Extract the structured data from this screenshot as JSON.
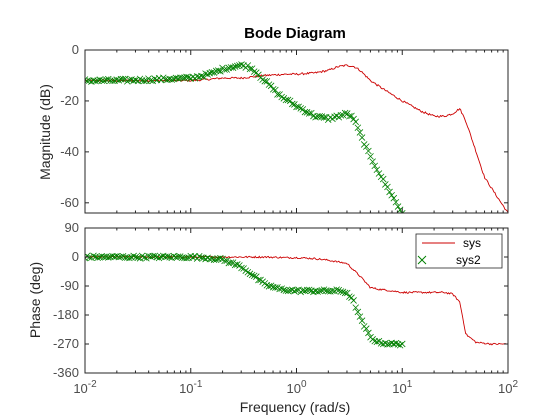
{
  "title": "Bode Diagram",
  "xlabel": "Frequency  (rad/s)",
  "colors": {
    "sys": "#cc0000",
    "sys2": "#008000",
    "axis": "#262626",
    "tick": "#4d4d4d"
  },
  "legend": {
    "placement": "top-right (phase plot)",
    "entries": [
      "sys",
      "sys2"
    ]
  },
  "chart_data": [
    {
      "type": "line",
      "ylabel": "Magnitude (dB)",
      "xscale": "log",
      "xlim": [
        0.01,
        100
      ],
      "ylim": [
        -64,
        0
      ],
      "yticks": [
        0,
        -20,
        -40,
        -60
      ],
      "ytick_labels": [
        "0",
        "-20",
        "-40",
        "-60"
      ],
      "grid": false,
      "series": [
        {
          "name": "sys",
          "style": "line",
          "x": [
            0.01,
            0.02,
            0.05,
            0.1,
            0.15,
            0.2,
            0.3,
            0.5,
            0.8,
            1.0,
            1.5,
            2.0,
            2.5,
            3.0,
            3.5,
            4.0,
            5.0,
            7.0,
            10,
            15,
            20,
            25,
            30,
            35,
            40,
            50,
            60,
            80,
            100
          ],
          "y": [
            -12,
            -12,
            -12,
            -12,
            -11.5,
            -11,
            -11,
            -10,
            -9.5,
            -9.5,
            -9,
            -8,
            -6.5,
            -6,
            -6.5,
            -8,
            -12,
            -16,
            -20,
            -24,
            -26,
            -26,
            -25,
            -23,
            -28,
            -40,
            -50,
            -58,
            -64
          ]
        },
        {
          "name": "sys2",
          "style": "x-markers",
          "x": [
            0.01,
            0.02,
            0.05,
            0.1,
            0.15,
            0.2,
            0.25,
            0.3,
            0.35,
            0.4,
            0.5,
            0.7,
            1.0,
            1.5,
            2.0,
            2.5,
            3.0,
            3.5,
            4.0,
            5.0,
            6.0,
            7.0,
            8.0,
            9.0,
            10.0
          ],
          "y": [
            -12,
            -12,
            -11.5,
            -11,
            -9.5,
            -7.5,
            -6.5,
            -6,
            -6.5,
            -8,
            -12,
            -18,
            -22,
            -26,
            -27,
            -26,
            -25,
            -27,
            -33,
            -42,
            -48,
            -53,
            -57,
            -61,
            -64
          ]
        }
      ]
    },
    {
      "type": "line",
      "ylabel": "Phase (deg)",
      "xscale": "log",
      "xlim": [
        0.01,
        100
      ],
      "ylim": [
        -360,
        90
      ],
      "yticks": [
        90,
        0,
        -90,
        -180,
        -270,
        -360
      ],
      "ytick_labels": [
        "90",
        "0",
        "-90",
        "-180",
        "-270",
        "-360"
      ],
      "xticks": [
        0.01,
        0.1,
        1,
        10,
        100
      ],
      "xtick_labels": [
        "10",
        "10",
        "10",
        "10",
        "10"
      ],
      "xtick_exponents": [
        "-2",
        "-1",
        "0",
        "1",
        "2"
      ],
      "grid": false,
      "series": [
        {
          "name": "sys",
          "style": "line",
          "x": [
            0.01,
            0.02,
            0.05,
            0.1,
            0.2,
            0.3,
            0.5,
            0.8,
            1.0,
            1.5,
            2.0,
            3.0,
            4.0,
            5.0,
            6.0,
            8.0,
            10,
            15,
            20,
            25,
            30,
            35,
            40,
            50,
            70,
            100
          ],
          "y": [
            0,
            0,
            0,
            0,
            0,
            0,
            0,
            -2,
            -2,
            -5,
            -10,
            -20,
            -60,
            -95,
            -100,
            -105,
            -110,
            -110,
            -110,
            -110,
            -115,
            -140,
            -240,
            -265,
            -270,
            -270
          ]
        },
        {
          "name": "sys2",
          "style": "x-markers",
          "x": [
            0.01,
            0.02,
            0.05,
            0.1,
            0.15,
            0.2,
            0.3,
            0.4,
            0.5,
            0.7,
            1.0,
            1.5,
            2.0,
            2.5,
            3.0,
            3.5,
            4.0,
            5.0,
            6.0,
            8.0,
            10.0
          ],
          "y": [
            0,
            0,
            0,
            0,
            -3,
            -8,
            -30,
            -60,
            -85,
            -100,
            -105,
            -105,
            -105,
            -105,
            -110,
            -140,
            -190,
            -250,
            -265,
            -270,
            -270
          ]
        }
      ]
    }
  ]
}
